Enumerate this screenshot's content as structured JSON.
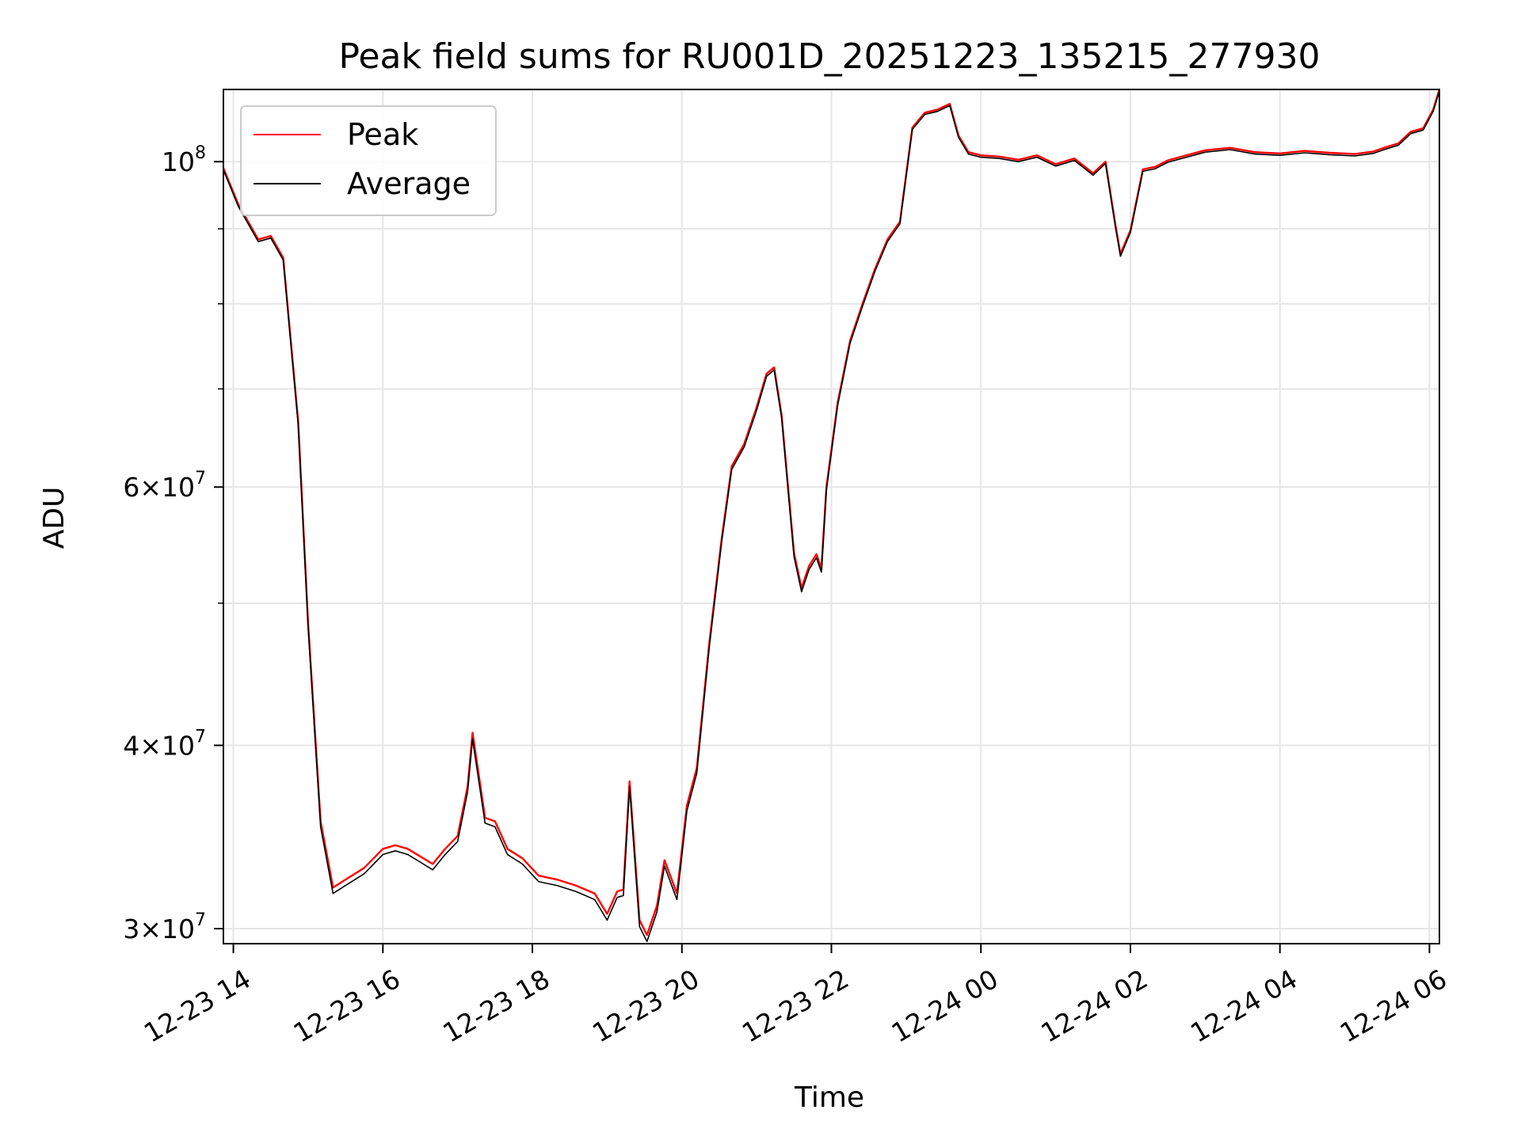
{
  "chart_data": {
    "type": "line",
    "title": "Peak field sums for RU001D_20251223_135215_277930",
    "xlabel": "Time",
    "ylabel": "ADU",
    "y_scale": "log",
    "ylim": [
      29300000,
      112000000
    ],
    "xlim": [
      "2025-12-23 13:52",
      "2025-12-24 06:08"
    ],
    "grid": true,
    "legend_position": "top-left",
    "x_ticks": [
      {
        "t": "2025-12-23 14:00",
        "label": "12-23 14"
      },
      {
        "t": "2025-12-23 16:00",
        "label": "12-23 16"
      },
      {
        "t": "2025-12-23 18:00",
        "label": "12-23 18"
      },
      {
        "t": "2025-12-23 20:00",
        "label": "12-23 20"
      },
      {
        "t": "2025-12-23 22:00",
        "label": "12-23 22"
      },
      {
        "t": "2025-12-24 00:00",
        "label": "12-24 00"
      },
      {
        "t": "2025-12-24 02:00",
        "label": "12-24 02"
      },
      {
        "t": "2025-12-24 04:00",
        "label": "12-24 04"
      },
      {
        "t": "2025-12-24 06:00",
        "label": "12-24 06"
      }
    ],
    "y_major_ticks": [
      {
        "value": 30000000,
        "mantissa": "3",
        "exp": "7"
      },
      {
        "value": 40000000,
        "mantissa": "4",
        "exp": "7"
      },
      {
        "value": 60000000,
        "mantissa": "6",
        "exp": "7"
      },
      {
        "value": 100000000,
        "mantissa": "",
        "exp": "8"
      }
    ],
    "y_minor_gridlines": [
      50000000,
      70000000,
      80000000,
      90000000
    ],
    "series": [
      {
        "name": "Peak",
        "color": "#ff0000",
        "x": [
          "2025-12-23 13:52",
          "2025-12-23 14:04",
          "2025-12-23 14:20",
          "2025-12-23 14:30",
          "2025-12-23 14:40",
          "2025-12-23 14:52",
          "2025-12-23 15:00",
          "2025-12-23 15:10",
          "2025-12-23 15:20",
          "2025-12-23 15:30",
          "2025-12-23 15:45",
          "2025-12-23 16:00",
          "2025-12-23 16:10",
          "2025-12-23 16:20",
          "2025-12-23 16:30",
          "2025-12-23 16:40",
          "2025-12-23 16:50",
          "2025-12-23 17:00",
          "2025-12-23 17:08",
          "2025-12-23 17:12",
          "2025-12-23 17:22",
          "2025-12-23 17:30",
          "2025-12-23 17:40",
          "2025-12-23 17:52",
          "2025-12-23 18:05",
          "2025-12-23 18:20",
          "2025-12-23 18:35",
          "2025-12-23 18:50",
          "2025-12-23 19:00",
          "2025-12-23 19:08",
          "2025-12-23 19:13",
          "2025-12-23 19:18",
          "2025-12-23 19:26",
          "2025-12-23 19:32",
          "2025-12-23 19:40",
          "2025-12-23 19:46",
          "2025-12-23 19:56",
          "2025-12-23 20:04",
          "2025-12-23 20:12",
          "2025-12-23 20:22",
          "2025-12-23 20:32",
          "2025-12-23 20:40",
          "2025-12-23 20:50",
          "2025-12-23 21:00",
          "2025-12-23 21:08",
          "2025-12-23 21:14",
          "2025-12-23 21:20",
          "2025-12-23 21:30",
          "2025-12-23 21:36",
          "2025-12-23 21:42",
          "2025-12-23 21:48",
          "2025-12-23 21:52",
          "2025-12-23 21:56",
          "2025-12-23 22:05",
          "2025-12-23 22:15",
          "2025-12-23 22:25",
          "2025-12-23 22:35",
          "2025-12-23 22:45",
          "2025-12-23 22:55",
          "2025-12-23 23:05",
          "2025-12-23 23:15",
          "2025-12-23 23:25",
          "2025-12-23 23:35",
          "2025-12-23 23:42",
          "2025-12-23 23:50",
          "2025-12-24 00:00",
          "2025-12-24 00:15",
          "2025-12-24 00:30",
          "2025-12-24 00:45",
          "2025-12-24 01:00",
          "2025-12-24 01:15",
          "2025-12-24 01:30",
          "2025-12-24 01:40",
          "2025-12-24 01:48",
          "2025-12-24 01:52",
          "2025-12-24 02:00",
          "2025-12-24 02:10",
          "2025-12-24 02:20",
          "2025-12-24 02:30",
          "2025-12-24 02:45",
          "2025-12-24 03:00",
          "2025-12-24 03:20",
          "2025-12-24 03:40",
          "2025-12-24 04:00",
          "2025-12-24 04:20",
          "2025-12-24 04:40",
          "2025-12-24 05:00",
          "2025-12-24 05:15",
          "2025-12-24 05:25",
          "2025-12-24 05:35",
          "2025-12-24 05:45",
          "2025-12-24 05:55",
          "2025-12-24 06:03",
          "2025-12-24 06:08"
        ],
        "y": [
          99000000,
          93500000,
          88500000,
          89000000,
          86000000,
          66500000,
          48500000,
          35500000,
          32000000,
          32400000,
          33000000,
          34000000,
          34200000,
          34000000,
          33600000,
          33200000,
          34000000,
          34700000,
          37500000,
          40800000,
          35700000,
          35500000,
          34000000,
          33500000,
          32600000,
          32400000,
          32100000,
          31700000,
          30700000,
          31800000,
          31900000,
          37800000,
          30400000,
          29700000,
          31100000,
          33400000,
          31700000,
          36400000,
          38600000,
          47000000,
          55400000,
          62000000,
          64200000,
          68000000,
          71700000,
          72400000,
          67200000,
          54100000,
          51200000,
          53000000,
          54000000,
          52800000,
          60000000,
          68500000,
          75500000,
          80000000,
          84500000,
          88500000,
          91000000,
          105500000,
          108000000,
          108500000,
          109500000,
          104200000,
          101500000,
          101000000,
          100800000,
          100300000,
          101000000,
          99600000,
          100500000,
          98200000,
          100000000,
          90500000,
          86500000,
          89800000,
          98800000,
          99200000,
          100200000,
          101000000,
          101800000,
          102200000,
          101500000,
          101300000,
          101700000,
          101400000,
          101200000,
          101600000,
          102300000,
          102900000,
          104800000,
          105400000,
          108500000,
          112000000
        ]
      },
      {
        "name": "Average",
        "color": "#000000",
        "x": [
          "2025-12-23 13:52",
          "2025-12-23 14:04",
          "2025-12-23 14:20",
          "2025-12-23 14:30",
          "2025-12-23 14:40",
          "2025-12-23 14:52",
          "2025-12-23 15:00",
          "2025-12-23 15:10",
          "2025-12-23 15:20",
          "2025-12-23 15:30",
          "2025-12-23 15:45",
          "2025-12-23 16:00",
          "2025-12-23 16:10",
          "2025-12-23 16:20",
          "2025-12-23 16:30",
          "2025-12-23 16:40",
          "2025-12-23 16:50",
          "2025-12-23 17:00",
          "2025-12-23 17:08",
          "2025-12-23 17:12",
          "2025-12-23 17:22",
          "2025-12-23 17:30",
          "2025-12-23 17:40",
          "2025-12-23 17:52",
          "2025-12-23 18:05",
          "2025-12-23 18:20",
          "2025-12-23 18:35",
          "2025-12-23 18:50",
          "2025-12-23 19:00",
          "2025-12-23 19:08",
          "2025-12-23 19:13",
          "2025-12-23 19:18",
          "2025-12-23 19:26",
          "2025-12-23 19:32",
          "2025-12-23 19:40",
          "2025-12-23 19:46",
          "2025-12-23 19:56",
          "2025-12-23 20:04",
          "2025-12-23 20:12",
          "2025-12-23 20:22",
          "2025-12-23 20:32",
          "2025-12-23 20:40",
          "2025-12-23 20:50",
          "2025-12-23 21:00",
          "2025-12-23 21:08",
          "2025-12-23 21:14",
          "2025-12-23 21:20",
          "2025-12-23 21:30",
          "2025-12-23 21:36",
          "2025-12-23 21:42",
          "2025-12-23 21:48",
          "2025-12-23 21:52",
          "2025-12-23 21:56",
          "2025-12-23 22:05",
          "2025-12-23 22:15",
          "2025-12-23 22:25",
          "2025-12-23 22:35",
          "2025-12-23 22:45",
          "2025-12-23 22:55",
          "2025-12-23 23:05",
          "2025-12-23 23:15",
          "2025-12-23 23:25",
          "2025-12-23 23:35",
          "2025-12-23 23:42",
          "2025-12-23 23:50",
          "2025-12-24 00:00",
          "2025-12-24 00:15",
          "2025-12-24 00:30",
          "2025-12-24 00:45",
          "2025-12-24 01:00",
          "2025-12-24 01:15",
          "2025-12-24 01:30",
          "2025-12-24 01:40",
          "2025-12-24 01:48",
          "2025-12-24 01:52",
          "2025-12-24 02:00",
          "2025-12-24 02:10",
          "2025-12-24 02:20",
          "2025-12-24 02:30",
          "2025-12-24 02:45",
          "2025-12-24 03:00",
          "2025-12-24 03:20",
          "2025-12-24 03:40",
          "2025-12-24 04:00",
          "2025-12-24 04:20",
          "2025-12-24 04:40",
          "2025-12-24 05:00",
          "2025-12-24 05:15",
          "2025-12-24 05:25",
          "2025-12-24 05:35",
          "2025-12-24 05:45",
          "2025-12-24 05:55",
          "2025-12-24 06:03",
          "2025-12-24 06:08"
        ],
        "y": [
          98700000,
          93200000,
          88200000,
          88700000,
          85700000,
          66200000,
          48200000,
          35200000,
          31700000,
          32100000,
          32700000,
          33700000,
          33900000,
          33700000,
          33300000,
          32900000,
          33700000,
          34400000,
          37200000,
          40400000,
          35400000,
          35200000,
          33700000,
          33200000,
          32300000,
          32100000,
          31800000,
          31400000,
          30400000,
          31500000,
          31600000,
          37500000,
          30100000,
          29400000,
          30800000,
          33100000,
          31400000,
          36100000,
          38300000,
          46700000,
          55100000,
          61700000,
          63900000,
          67700000,
          71400000,
          72100000,
          66900000,
          53800000,
          50900000,
          52700000,
          53700000,
          52500000,
          59700000,
          68200000,
          75200000,
          79700000,
          84200000,
          88200000,
          90700000,
          105200000,
          107700000,
          108200000,
          109200000,
          103900000,
          101200000,
          100700000,
          100500000,
          100000000,
          100700000,
          99300000,
          100200000,
          97900000,
          99700000,
          90200000,
          86200000,
          89500000,
          98500000,
          98900000,
          99900000,
          100700000,
          101500000,
          101900000,
          101200000,
          101000000,
          101400000,
          101100000,
          100900000,
          101300000,
          102000000,
          102600000,
          104500000,
          105100000,
          108200000,
          111700000
        ]
      }
    ]
  }
}
